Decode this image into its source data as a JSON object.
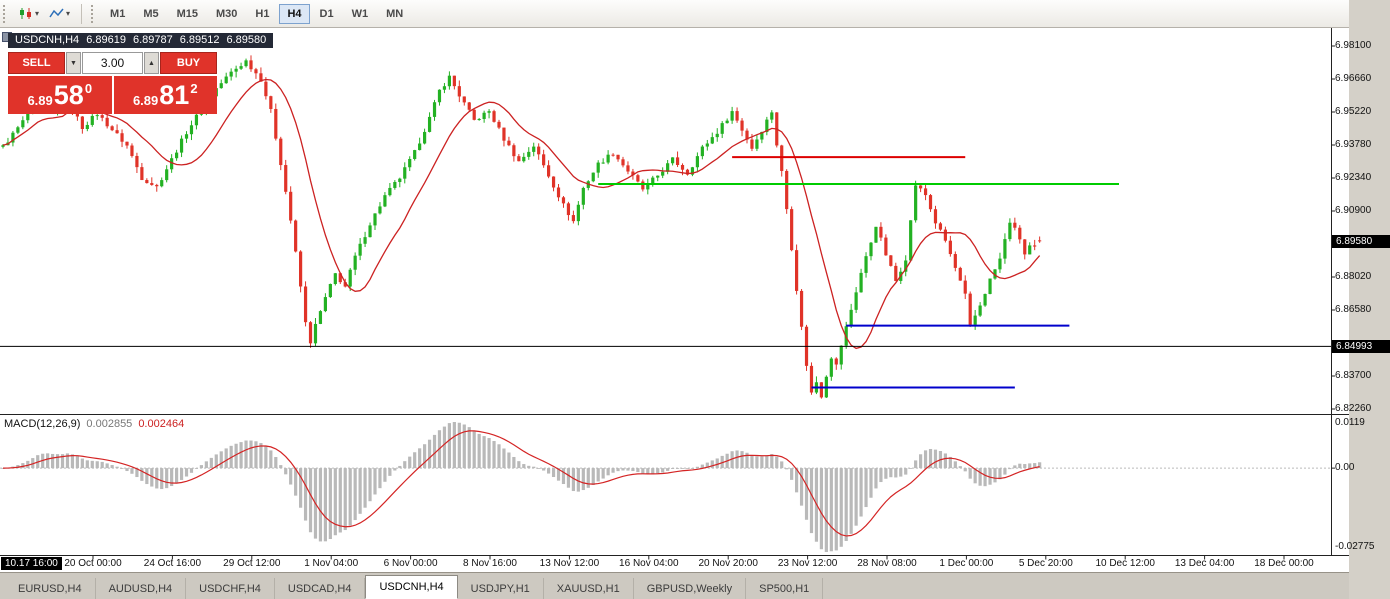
{
  "toolbar": {
    "timeframes": [
      "M1",
      "M5",
      "M15",
      "M30",
      "H1",
      "H4",
      "D1",
      "W1",
      "MN"
    ],
    "active_timeframe": "H4"
  },
  "icons": {
    "caret": "▾",
    "spin_up": "▲",
    "spin_down": "▼"
  },
  "chart": {
    "symbol": "USDCNH,H4",
    "current_bar": {
      "open": "6.89619",
      "high": "6.89787",
      "low": "6.89512",
      "close": "6.89580"
    },
    "trade_panel": {
      "sell_label": "SELL",
      "buy_label": "BUY",
      "lot": "3.00",
      "sell_price": {
        "base": "6.89",
        "pips": "58",
        "point": "0"
      },
      "buy_price": {
        "base": "6.89",
        "pips": "81",
        "point": "2"
      }
    },
    "price_axis_labels": [
      {
        "text": "6.98100",
        "price": 6.981
      },
      {
        "text": "6.96660",
        "price": 6.9666
      },
      {
        "text": "6.95220",
        "price": 6.9522
      },
      {
        "text": "6.93780",
        "price": 6.9378
      },
      {
        "text": "6.92340",
        "price": 6.9234
      },
      {
        "text": "6.90900",
        "price": 6.909
      },
      {
        "text": "6.88020",
        "price": 6.8802
      },
      {
        "text": "6.86580",
        "price": 6.8658
      },
      {
        "text": "6.83700",
        "price": 6.837
      },
      {
        "text": "6.82260",
        "price": 6.8226
      }
    ],
    "bid_tag": {
      "text": "6.89580",
      "price": 6.8958
    },
    "hline_tag": {
      "text": "6.84993",
      "price": 6.84993
    },
    "time_anchor_tag": "10.17 16:00",
    "time_axis_labels": [
      "20 Oct 00:00",
      "24 Oct 16:00",
      "29 Oct 12:00",
      "1 Nov 04:00",
      "6 Nov 00:00",
      "8 Nov 16:00",
      "13 Nov 12:00",
      "16 Nov 04:00",
      "20 Nov 20:00",
      "23 Nov 12:00",
      "28 Nov 08:00",
      "1 Dec 00:00",
      "5 Dec 20:00",
      "10 Dec 12:00",
      "13 Dec 04:00",
      "18 Dec 00:00"
    ],
    "objects": [
      {
        "name": "red-resistance-line",
        "color": "#dd0000",
        "price": 6.9325,
        "from_bar": 147,
        "to_bar": 194,
        "width": 2
      },
      {
        "name": "green-resistance-line",
        "color": "#00cc00",
        "price": 6.9208,
        "from_bar": 120,
        "to_bar": 225,
        "width": 2
      },
      {
        "name": "blue-support-line-upper",
        "color": "#0000cc",
        "price": 6.859,
        "from_bar": 170,
        "to_bar": 215,
        "width": 2
      },
      {
        "name": "blue-support-line-lower",
        "color": "#0000cc",
        "price": 6.832,
        "from_bar": 163,
        "to_bar": 204,
        "width": 2
      },
      {
        "name": "black-horizontal-line",
        "color": "#000000",
        "price": 6.84993,
        "from_bar": -1,
        "to_bar": 999,
        "width": 1
      }
    ],
    "candle_colors": {
      "up": "#23b123",
      "down": "#e03328"
    },
    "ma_color": "#cc2222",
    "price_path_waypoints": [
      [
        0,
        6.937
      ],
      [
        4,
        6.948
      ],
      [
        7,
        6.959
      ],
      [
        10,
        6.951
      ],
      [
        13,
        6.9575
      ],
      [
        16,
        6.9455
      ],
      [
        19,
        6.9515
      ],
      [
        22,
        6.9445
      ],
      [
        25,
        6.9375
      ],
      [
        28,
        6.9235
      ],
      [
        31,
        6.9195
      ],
      [
        34,
        6.9315
      ],
      [
        37,
        6.9435
      ],
      [
        40,
        6.9535
      ],
      [
        43,
        6.9625
      ],
      [
        46,
        6.9695
      ],
      [
        49,
        6.9745
      ],
      [
        52,
        6.9665
      ],
      [
        54,
        6.9525
      ],
      [
        56,
        6.93
      ],
      [
        58,
        6.905
      ],
      [
        60,
        6.876
      ],
      [
        61,
        6.86
      ],
      [
        62,
        6.852
      ],
      [
        63,
        6.859
      ],
      [
        65,
        6.871
      ],
      [
        67,
        6.8815
      ],
      [
        69,
        6.876
      ],
      [
        71,
        6.889
      ],
      [
        74,
        6.9035
      ],
      [
        77,
        6.9155
      ],
      [
        80,
        6.9235
      ],
      [
        83,
        6.9345
      ],
      [
        86,
        6.9495
      ],
      [
        88,
        6.9615
      ],
      [
        90,
        6.9675
      ],
      [
        92,
        6.9595
      ],
      [
        95,
        6.9485
      ],
      [
        98,
        6.9525
      ],
      [
        101,
        6.9405
      ],
      [
        104,
        6.9305
      ],
      [
        107,
        6.9375
      ],
      [
        110,
        6.9245
      ],
      [
        113,
        6.9115
      ],
      [
        115,
        6.9045
      ],
      [
        117,
        6.919
      ],
      [
        120,
        6.9295
      ],
      [
        123,
        6.9345
      ],
      [
        126,
        6.9265
      ],
      [
        129,
        6.9185
      ],
      [
        132,
        6.9245
      ],
      [
        135,
        6.9315
      ],
      [
        138,
        6.9255
      ],
      [
        141,
        6.9365
      ],
      [
        144,
        6.9435
      ],
      [
        147,
        6.9525
      ],
      [
        149,
        6.9445
      ],
      [
        151,
        6.9365
      ],
      [
        153,
        6.9445
      ],
      [
        155,
        6.9525
      ],
      [
        156,
        6.938
      ],
      [
        157,
        6.926
      ],
      [
        158,
        6.91
      ],
      [
        159,
        6.893
      ],
      [
        160,
        6.875
      ],
      [
        161,
        6.858
      ],
      [
        162,
        6.842
      ],
      [
        163,
        6.8295
      ],
      [
        164,
        6.8345
      ],
      [
        165,
        6.8285
      ],
      [
        166,
        6.8375
      ],
      [
        167,
        6.8455
      ],
      [
        168,
        6.8415
      ],
      [
        169,
        6.8505
      ],
      [
        171,
        6.866
      ],
      [
        173,
        6.882
      ],
      [
        175,
        6.8955
      ],
      [
        176,
        6.903
      ],
      [
        178,
        6.89
      ],
      [
        180,
        6.8785
      ],
      [
        182,
        6.8885
      ],
      [
        184,
        6.9205
      ],
      [
        186,
        6.916
      ],
      [
        188,
        6.904
      ],
      [
        190,
        6.896
      ],
      [
        192,
        6.884
      ],
      [
        194,
        6.872
      ],
      [
        195,
        6.8585
      ],
      [
        197,
        6.868
      ],
      [
        199,
        6.879
      ],
      [
        201,
        6.888
      ],
      [
        203,
        6.9045
      ],
      [
        205,
        6.897
      ],
      [
        206,
        6.89
      ],
      [
        207,
        6.8935
      ],
      [
        208,
        6.8925
      ],
      [
        209,
        6.8958
      ]
    ]
  },
  "macd": {
    "label": "MACD(12,26,9)",
    "value_main": "0.002855",
    "value_signal": "0.002464",
    "axis_labels": {
      "top": "0.0119",
      "zero": "0.00",
      "bottom": "-0.02775"
    },
    "histogram_color": "#b9b9b9",
    "signal_color": "#d42424",
    "params": {
      "fast": 12,
      "slow": 26,
      "signal": 9
    }
  },
  "tabs": {
    "items": [
      "EURUSD,H4",
      "AUDUSD,H4",
      "USDCHF,H4",
      "USDCAD,H4",
      "USDCNH,H4",
      "USDJPY,H1",
      "XAUUSD,H1",
      "GBPUSD,Weekly",
      "SP500,H1"
    ],
    "active": "USDCNH,H4"
  }
}
